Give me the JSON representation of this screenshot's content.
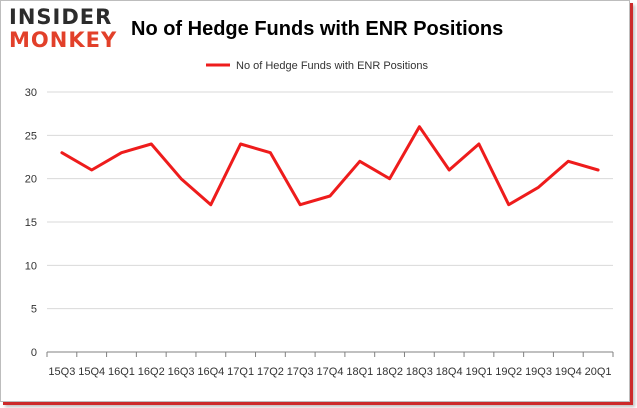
{
  "logo": {
    "line1": "INSIDER",
    "line2": "MONKEY"
  },
  "colors": {
    "series": "#ee1c1c",
    "grid": "#d9d9d9",
    "axis": "#808080",
    "accent": "#cc2a2a"
  },
  "chart_data": {
    "type": "line",
    "title": "No of Hedge Funds with ENR Positions",
    "xlabel": "",
    "ylabel": "",
    "ylim": [
      0,
      30
    ],
    "yticks": [
      0,
      5,
      10,
      15,
      20,
      25,
      30
    ],
    "grid": true,
    "legend_position": "top",
    "categories": [
      "15Q3",
      "15Q4",
      "16Q1",
      "16Q2",
      "16Q3",
      "16Q4",
      "17Q1",
      "17Q2",
      "17Q3",
      "17Q4",
      "18Q1",
      "18Q2",
      "18Q3",
      "18Q4",
      "19Q1",
      "19Q2",
      "19Q3",
      "19Q4",
      "20Q1"
    ],
    "series": [
      {
        "name": "No of Hedge Funds with ENR Positions",
        "values": [
          23,
          21,
          23,
          24,
          20,
          17,
          24,
          23,
          17,
          18,
          22,
          20,
          26,
          21,
          24,
          17,
          19,
          22,
          21
        ]
      }
    ]
  }
}
